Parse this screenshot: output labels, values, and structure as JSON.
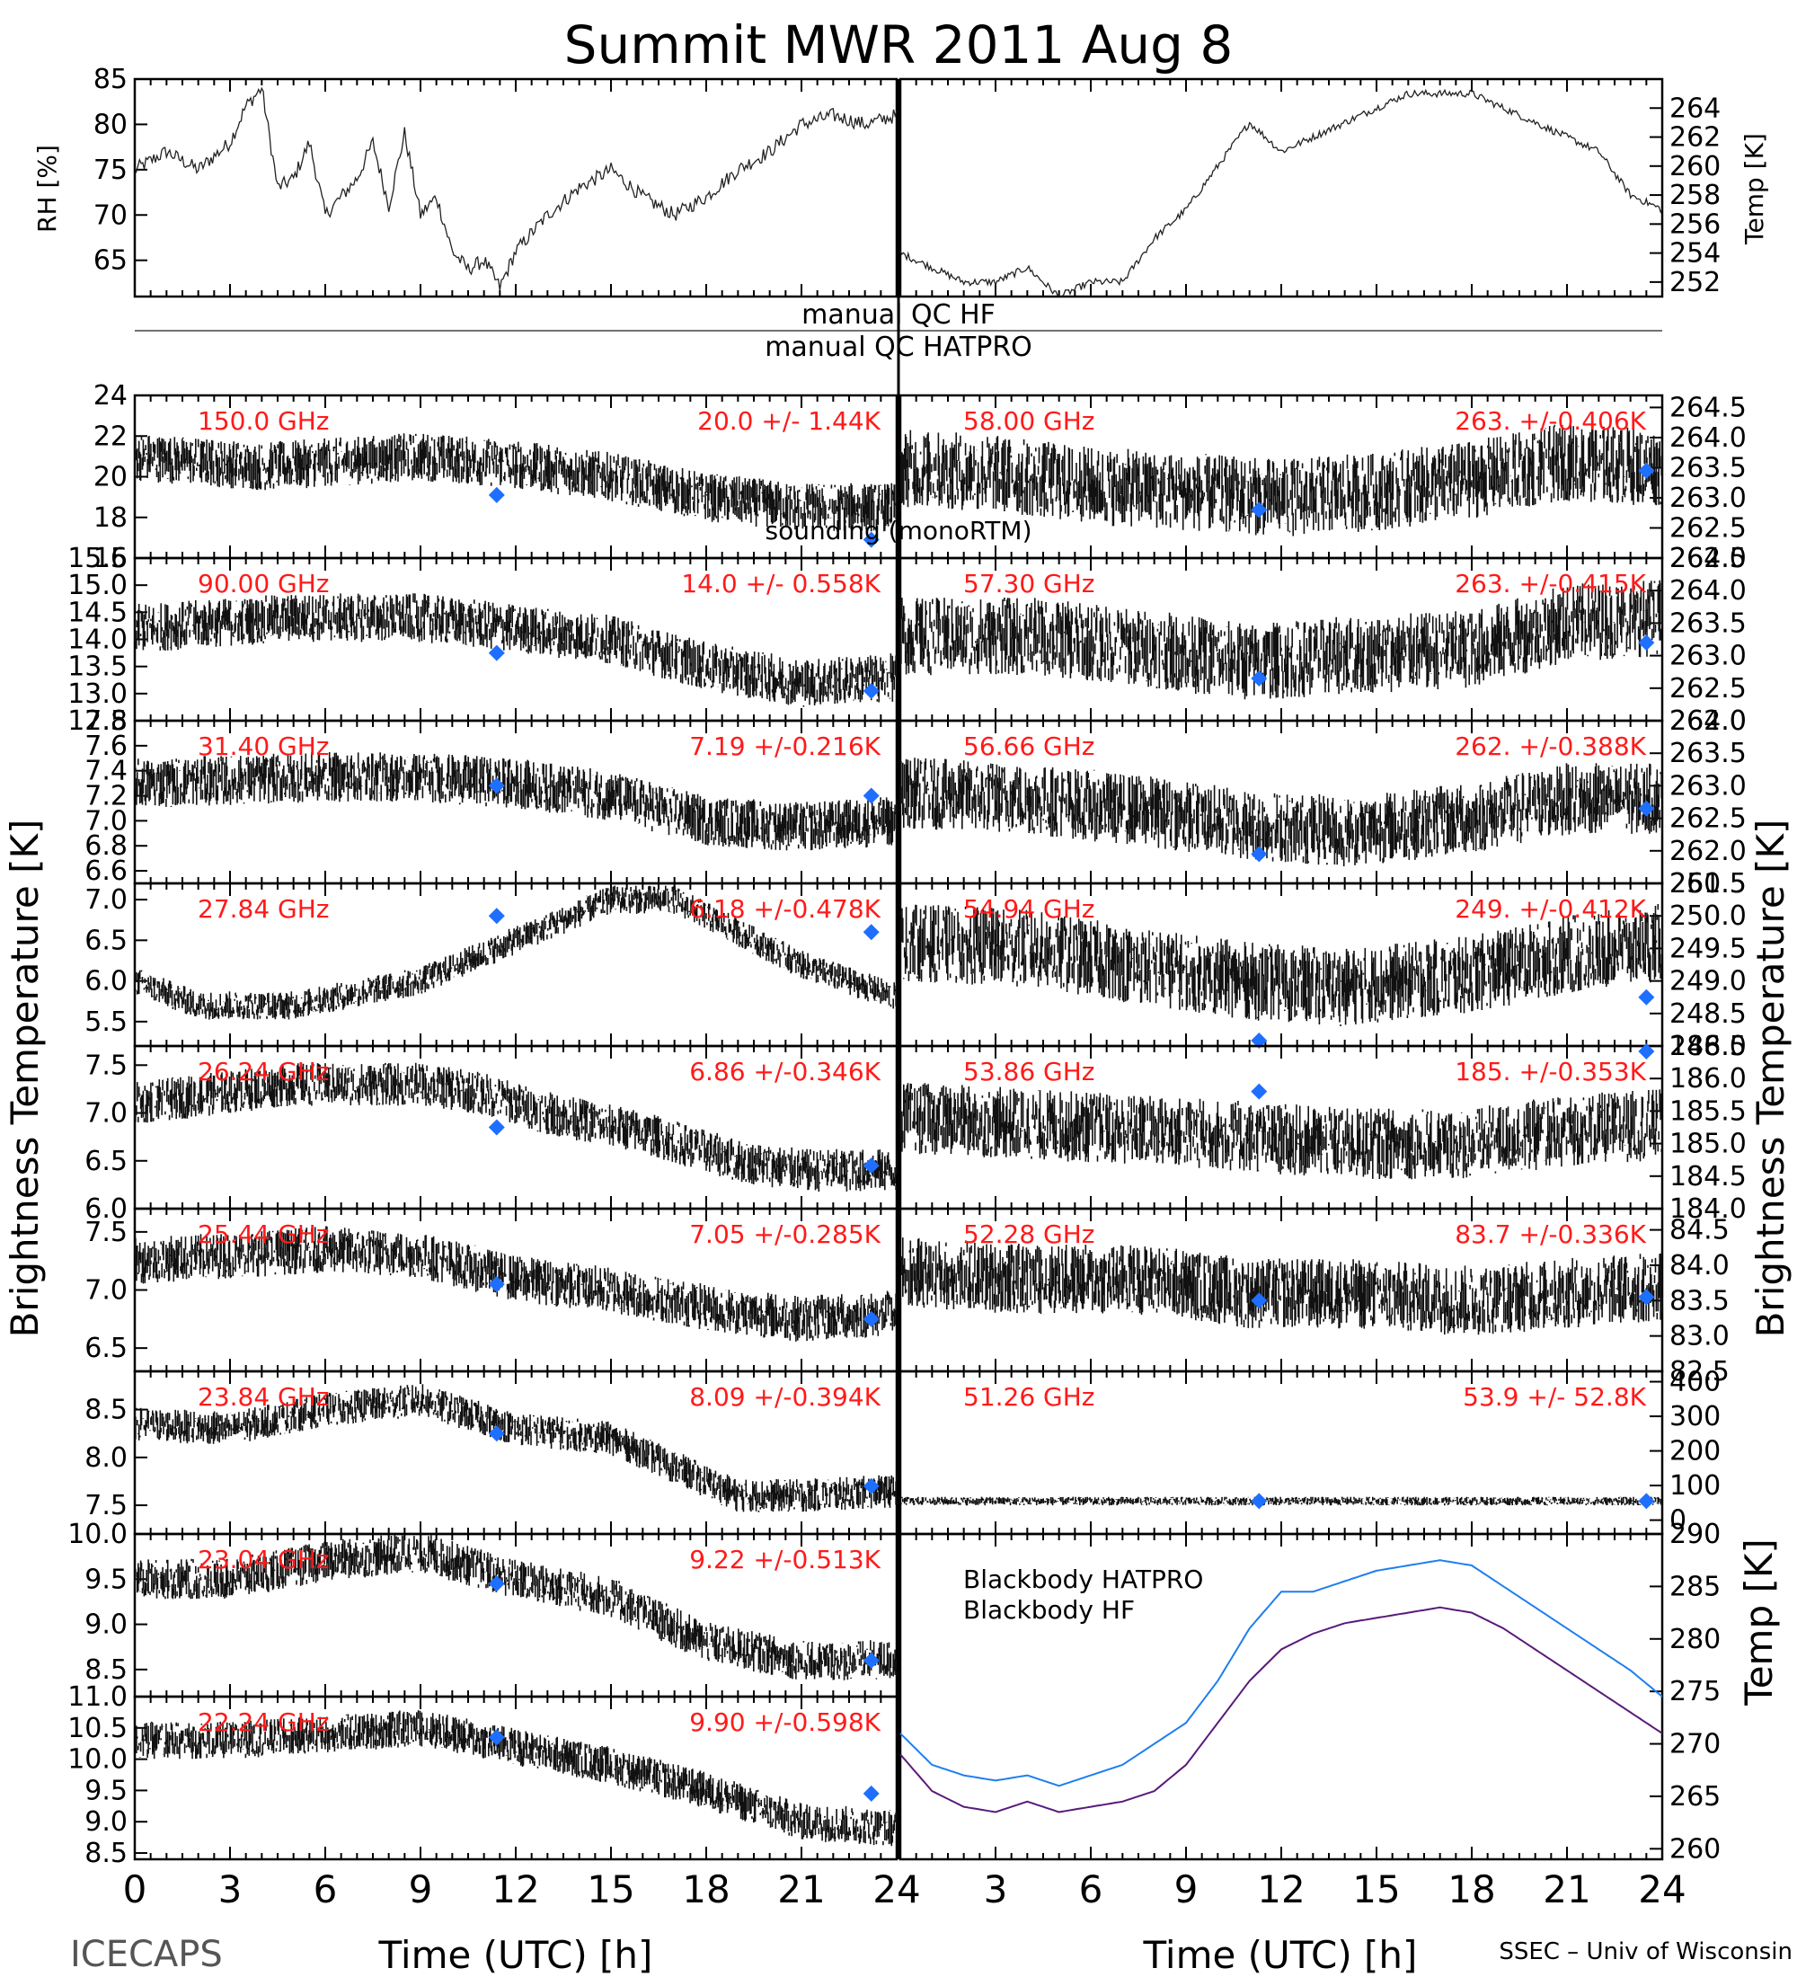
{
  "title": "Summit MWR 2011 Aug  8",
  "footer": {
    "left": "ICECAPS",
    "right": "SSEC – Univ of Wisconsin"
  },
  "qc": {
    "hf": "manual  QC HF",
    "hatpro": "manual  QC HATPRO"
  },
  "axis_labels": {
    "x": "Time (UTC) [h]",
    "left": "Brightness Temperature [K]",
    "right": "Brightness Temperature [K]",
    "rh": "RH [%]",
    "temp": "Temp [K]",
    "bb_temp": "Temp [K]"
  },
  "sounding_label": "sounding (monoRTM)",
  "colors": {
    "sounding": "#1f6fff",
    "label": "#ff1a1a",
    "hatpro": "#1e7ef0",
    "hf": "#5a1a7a"
  },
  "chart_data": {
    "type": "line",
    "x_ticks": [
      0,
      3,
      6,
      9,
      12,
      15,
      18,
      21,
      24
    ],
    "xlim": [
      0,
      24
    ],
    "met": [
      {
        "name": "RH [%]",
        "ylim": [
          61,
          85
        ],
        "ticks": [
          65,
          70,
          75,
          80,
          85
        ],
        "x": [
          0,
          1,
          2,
          3,
          3.5,
          4,
          4.5,
          5,
          5.5,
          6,
          6.5,
          7,
          7.5,
          8,
          8.5,
          9,
          9.5,
          10,
          10.5,
          11,
          11.5,
          12,
          12.5,
          13,
          14,
          15,
          16,
          17,
          18,
          19,
          20,
          21,
          22,
          23,
          24
        ],
        "y": [
          75,
          77,
          75,
          78,
          82,
          84,
          73,
          74,
          78,
          70,
          72,
          74,
          78,
          71,
          79,
          70,
          72,
          66,
          64,
          65,
          62,
          66,
          68,
          70,
          73,
          75,
          72,
          70,
          72,
          75,
          77,
          80,
          81,
          80,
          81
        ]
      },
      {
        "name": "Temp [K]",
        "ylim": [
          251,
          266
        ],
        "ticks": [
          252,
          254,
          256,
          258,
          260,
          262,
          264
        ],
        "x": [
          0,
          1,
          2,
          3,
          4,
          5,
          6,
          7,
          8,
          9,
          10,
          11,
          12,
          13,
          14,
          15,
          16,
          17,
          18,
          19,
          20,
          21,
          22,
          23,
          24
        ],
        "y": [
          254,
          253,
          252,
          252,
          253,
          251,
          252,
          252,
          255,
          257,
          260,
          263,
          261,
          262,
          263,
          264,
          265,
          265,
          265,
          264,
          263,
          262,
          261,
          258,
          257
        ]
      }
    ],
    "left_panels": [
      {
        "freq": "150.0 GHz",
        "stats": "20.0 +/-  1.44K",
        "ylim": [
          16,
          24
        ],
        "ticks": [
          16,
          18,
          20,
          22,
          24
        ],
        "trend": [
          [
            0,
            21
          ],
          [
            4,
            20.5
          ],
          [
            9,
            21
          ],
          [
            12,
            20.6
          ],
          [
            15,
            20
          ],
          [
            18,
            19
          ],
          [
            21,
            18.5
          ],
          [
            24,
            18.5
          ]
        ],
        "noise": 2.4,
        "sounding": [
          [
            11.4,
            19.1
          ],
          [
            23.2,
            16.9
          ]
        ]
      },
      {
        "freq": "90.00 GHz",
        "stats": "14.0 +/- 0.558K",
        "ylim": [
          12.5,
          15.5
        ],
        "ticks": [
          12.5,
          13.0,
          13.5,
          14.0,
          14.5,
          15.0,
          15.5
        ],
        "trend": [
          [
            0,
            14.2
          ],
          [
            5,
            14.4
          ],
          [
            9,
            14.4
          ],
          [
            12,
            14.2
          ],
          [
            15,
            14.0
          ],
          [
            18,
            13.5
          ],
          [
            21,
            13.2
          ],
          [
            24,
            13.3
          ]
        ],
        "noise": 0.9,
        "sounding": [
          [
            11.4,
            13.75
          ],
          [
            23.2,
            13.05
          ]
        ]
      },
      {
        "freq": "31.40 GHz",
        "stats": "7.19 +/-0.216K",
        "ylim": [
          6.5,
          7.8
        ],
        "ticks": [
          6.6,
          6.8,
          7.0,
          7.2,
          7.4,
          7.6,
          7.8
        ],
        "trend": [
          [
            0,
            7.3
          ],
          [
            6,
            7.35
          ],
          [
            9,
            7.35
          ],
          [
            12,
            7.3
          ],
          [
            15,
            7.2
          ],
          [
            18,
            7.0
          ],
          [
            21,
            6.95
          ],
          [
            24,
            7.0
          ]
        ],
        "noise": 0.4,
        "sounding": [
          [
            11.4,
            7.28
          ],
          [
            23.2,
            7.2
          ]
        ]
      },
      {
        "freq": "27.84 GHz",
        "stats": "6.18 +/-0.478K",
        "ylim": [
          5.2,
          7.2
        ],
        "ticks": [
          5.5,
          6.0,
          6.5,
          7.0
        ],
        "trend": [
          [
            0,
            6.0
          ],
          [
            2,
            5.7
          ],
          [
            5,
            5.7
          ],
          [
            9,
            6.0
          ],
          [
            12,
            6.5
          ],
          [
            15,
            7.0
          ],
          [
            17,
            7.0
          ],
          [
            19,
            6.6
          ],
          [
            21,
            6.2
          ],
          [
            24,
            5.8
          ]
        ],
        "noise": 0.35,
        "sounding": [
          [
            11.4,
            6.8
          ],
          [
            23.2,
            6.6
          ]
        ]
      },
      {
        "freq": "26.24 GHz",
        "stats": "6.86 +/-0.346K",
        "ylim": [
          6.0,
          7.7
        ],
        "ticks": [
          6.0,
          6.5,
          7.0,
          7.5
        ],
        "trend": [
          [
            0,
            7.1
          ],
          [
            5,
            7.3
          ],
          [
            9,
            7.3
          ],
          [
            11,
            7.2
          ],
          [
            13,
            7.0
          ],
          [
            16,
            6.8
          ],
          [
            19,
            6.5
          ],
          [
            21,
            6.4
          ],
          [
            24,
            6.4
          ]
        ],
        "noise": 0.45,
        "sounding": [
          [
            11.4,
            6.85
          ],
          [
            23.2,
            6.45
          ]
        ]
      },
      {
        "freq": "25.44 GHz",
        "stats": "7.05 +/-0.285K",
        "ylim": [
          6.3,
          7.7
        ],
        "ticks": [
          6.5,
          7.0,
          7.5
        ],
        "trend": [
          [
            0,
            7.25
          ],
          [
            6,
            7.35
          ],
          [
            9,
            7.3
          ],
          [
            12,
            7.1
          ],
          [
            15,
            7.0
          ],
          [
            18,
            6.85
          ],
          [
            21,
            6.75
          ],
          [
            24,
            6.8
          ]
        ],
        "noise": 0.4,
        "sounding": [
          [
            11.4,
            7.05
          ],
          [
            23.2,
            6.75
          ]
        ]
      },
      {
        "freq": "23.84 GHz",
        "stats": "8.09 +/-0.394K",
        "ylim": [
          7.2,
          8.9
        ],
        "ticks": [
          7.5,
          8.0,
          8.5
        ],
        "trend": [
          [
            0,
            8.35
          ],
          [
            3,
            8.3
          ],
          [
            6,
            8.5
          ],
          [
            9,
            8.6
          ],
          [
            12,
            8.3
          ],
          [
            15,
            8.2
          ],
          [
            17,
            7.9
          ],
          [
            19,
            7.6
          ],
          [
            21,
            7.6
          ],
          [
            24,
            7.65
          ]
        ],
        "noise": 0.35,
        "sounding": [
          [
            11.4,
            8.25
          ],
          [
            23.2,
            7.7
          ]
        ]
      },
      {
        "freq": "23.04 GHz",
        "stats": "9.22 +/-0.513K",
        "ylim": [
          8.2,
          10.0
        ],
        "ticks": [
          8.5,
          9.0,
          9.5,
          10.0
        ],
        "trend": [
          [
            0,
            9.5
          ],
          [
            3,
            9.5
          ],
          [
            6,
            9.7
          ],
          [
            9,
            9.8
          ],
          [
            12,
            9.5
          ],
          [
            15,
            9.3
          ],
          [
            18,
            8.8
          ],
          [
            21,
            8.6
          ],
          [
            24,
            8.6
          ]
        ],
        "noise": 0.45,
        "sounding": [
          [
            11.4,
            9.45
          ],
          [
            23.2,
            8.6
          ]
        ]
      },
      {
        "freq": "22.24 GHz",
        "stats": "9.90 +/-0.598K",
        "ylim": [
          8.4,
          11.0
        ],
        "ticks": [
          8.5,
          9.0,
          9.5,
          10.0,
          10.5,
          11.0
        ],
        "trend": [
          [
            0,
            10.3
          ],
          [
            3,
            10.3
          ],
          [
            6,
            10.4
          ],
          [
            9,
            10.5
          ],
          [
            12,
            10.2
          ],
          [
            15,
            9.9
          ],
          [
            18,
            9.5
          ],
          [
            21,
            9.0
          ],
          [
            24,
            8.9
          ]
        ],
        "noise": 0.6,
        "sounding": [
          [
            11.4,
            10.35
          ],
          [
            23.2,
            9.45
          ]
        ]
      }
    ],
    "right_panels": [
      {
        "freq": "58.00 GHz",
        "stats": "263. +/-0.406K",
        "ylim": [
          262.0,
          264.7
        ],
        "ticks": [
          262.0,
          262.5,
          263.0,
          263.5,
          264.0,
          264.5
        ],
        "trend": [
          [
            0,
            263.5
          ],
          [
            3,
            263.4
          ],
          [
            6,
            263.2
          ],
          [
            9,
            263.1
          ],
          [
            12,
            263.0
          ],
          [
            15,
            263.1
          ],
          [
            18,
            263.3
          ],
          [
            21,
            263.6
          ],
          [
            24,
            263.5
          ]
        ],
        "noise": 1.3,
        "sounding": [
          [
            11.3,
            262.8
          ],
          [
            23.5,
            263.45
          ]
        ]
      },
      {
        "freq": "57.30 GHz",
        "stats": "263. +/-0.415K",
        "ylim": [
          262.0,
          264.5
        ],
        "ticks": [
          262.0,
          262.5,
          263.0,
          263.5,
          264.0,
          264.5
        ],
        "trend": [
          [
            0,
            263.3
          ],
          [
            4,
            263.3
          ],
          [
            8,
            263.1
          ],
          [
            11,
            262.9
          ],
          [
            14,
            263.0
          ],
          [
            18,
            263.1
          ],
          [
            21,
            263.5
          ],
          [
            24,
            263.6
          ]
        ],
        "noise": 1.2,
        "sounding": [
          [
            11.3,
            262.65
          ],
          [
            23.5,
            263.2
          ]
        ]
      },
      {
        "freq": "56.66 GHz",
        "stats": "262. +/-0.388K",
        "ylim": [
          261.5,
          264.0
        ],
        "ticks": [
          261.5,
          262.0,
          262.5,
          263.0,
          263.5,
          264.0
        ],
        "trend": [
          [
            0,
            262.9
          ],
          [
            4,
            262.8
          ],
          [
            8,
            262.6
          ],
          [
            11,
            262.4
          ],
          [
            14,
            262.3
          ],
          [
            18,
            262.5
          ],
          [
            21,
            262.8
          ],
          [
            24,
            262.8
          ]
        ],
        "noise": 1.1,
        "sounding": [
          [
            11.3,
            261.95
          ],
          [
            23.5,
            262.65
          ]
        ]
      },
      {
        "freq": "54.94 GHz",
        "stats": "249. +/-0.412K",
        "ylim": [
          248.0,
          250.5
        ],
        "ticks": [
          248.0,
          248.5,
          249.0,
          249.5,
          250.0,
          250.5
        ],
        "trend": [
          [
            0,
            249.6
          ],
          [
            4,
            249.5
          ],
          [
            8,
            249.2
          ],
          [
            11,
            249.0
          ],
          [
            14,
            248.9
          ],
          [
            18,
            249.1
          ],
          [
            21,
            249.4
          ],
          [
            24,
            249.6
          ]
        ],
        "noise": 1.2,
        "sounding": [
          [
            11.3,
            248.0
          ],
          [
            23.5,
            248.75
          ]
        ]
      },
      {
        "freq": "53.86 GHz",
        "stats": "185. +/-0.353K",
        "ylim": [
          184.0,
          186.5
        ],
        "ticks": [
          184.0,
          184.5,
          185.0,
          185.5,
          186.0,
          186.5
        ],
        "trend": [
          [
            0,
            185.4
          ],
          [
            4,
            185.3
          ],
          [
            8,
            185.2
          ],
          [
            11,
            185.1
          ],
          [
            14,
            185.0
          ],
          [
            18,
            185.0
          ],
          [
            21,
            185.2
          ],
          [
            24,
            185.3
          ]
        ],
        "noise": 1.1,
        "sounding": [
          [
            11.3,
            185.8
          ],
          [
            23.5,
            186.45
          ]
        ]
      },
      {
        "freq": "52.28 GHz",
        "stats": "83.7 +/-0.336K",
        "ylim": [
          82.5,
          84.8
        ],
        "ticks": [
          82.5,
          83.0,
          83.5,
          84.0,
          84.5
        ],
        "trend": [
          [
            0,
            83.9
          ],
          [
            4,
            83.8
          ],
          [
            8,
            83.8
          ],
          [
            11,
            83.6
          ],
          [
            14,
            83.6
          ],
          [
            18,
            83.5
          ],
          [
            21,
            83.6
          ],
          [
            24,
            83.7
          ]
        ],
        "noise": 1.0,
        "sounding": [
          [
            11.3,
            83.5
          ],
          [
            23.5,
            83.55
          ]
        ]
      },
      {
        "freq": "51.26 GHz",
        "stats": "53.9 +/- 52.8K",
        "ylim": [
          -40,
          430
        ],
        "ticks": [
          0,
          100,
          200,
          300,
          400
        ],
        "trend": [
          [
            0,
            55
          ],
          [
            24,
            55
          ]
        ],
        "noise": 25,
        "sounding": [
          [
            11.3,
            55
          ],
          [
            23.5,
            55
          ]
        ]
      }
    ],
    "blackbody": {
      "ylim": [
        259,
        290
      ],
      "ticks": [
        260,
        265,
        270,
        275,
        280,
        285,
        290
      ],
      "series": [
        {
          "name": "Blackbody HATPRO",
          "x": [
            0,
            1,
            2,
            3,
            4,
            5,
            6,
            7,
            8,
            9,
            10,
            11,
            12,
            13,
            14,
            15,
            16,
            17,
            18,
            19,
            20,
            21,
            22,
            23,
            24
          ],
          "y": [
            271,
            268,
            267,
            266.5,
            267,
            266,
            267,
            268,
            270,
            272,
            276,
            281,
            284.5,
            284.5,
            285.5,
            286.5,
            287,
            287.5,
            287,
            285,
            283,
            281,
            279,
            277,
            274.5
          ]
        },
        {
          "name": "Blackbody HF",
          "x": [
            0,
            1,
            2,
            3,
            4,
            5,
            6,
            7,
            8,
            9,
            10,
            11,
            12,
            13,
            14,
            15,
            16,
            17,
            18,
            19,
            20,
            21,
            22,
            23,
            24
          ],
          "y": [
            269,
            265.5,
            264,
            263.5,
            264.5,
            263.5,
            264,
            264.5,
            265.5,
            268,
            272,
            276,
            279,
            280.5,
            281.5,
            282,
            282.5,
            283,
            282.5,
            281,
            279,
            277,
            275,
            273,
            271
          ]
        }
      ]
    }
  }
}
